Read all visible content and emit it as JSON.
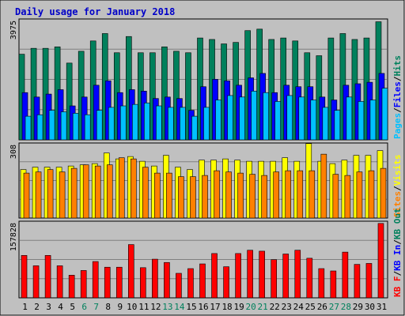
{
  "title": "Daily usage for January 2018",
  "colors": {
    "background": "#C0C0C0",
    "frame": "#000000",
    "title": "#0000C8",
    "hits": "#00805C",
    "files": "#0000FF",
    "pages": "#00C0FF",
    "visits": "#FFFF00",
    "sites": "#FF8000",
    "kbytes": "#FF0000",
    "weekend_label": "#00805C",
    "weekday_label": "#000000"
  },
  "chart_data": [
    {
      "type": "bar",
      "name": "top-panel",
      "ymax_label": "3975",
      "ylim": [
        0,
        3975
      ],
      "right_label": [
        "Pages",
        "Files",
        "Hits"
      ],
      "categories": [
        "1",
        "2",
        "3",
        "4",
        "5",
        "6",
        "7",
        "8",
        "9",
        "10",
        "11",
        "12",
        "13",
        "14",
        "15",
        "16",
        "17",
        "18",
        "19",
        "20",
        "21",
        "22",
        "23",
        "24",
        "25",
        "26",
        "27",
        "28",
        "29",
        "30",
        "31"
      ],
      "weekend": [
        "6",
        "7",
        "13",
        "14",
        "20",
        "21",
        "27",
        "28"
      ],
      "series": [
        {
          "name": "Hits",
          "values": [
            2900,
            3100,
            3100,
            3150,
            2600,
            3000,
            3350,
            3600,
            2950,
            3500,
            2950,
            2950,
            3150,
            3000,
            2950,
            3450,
            3400,
            3250,
            3300,
            3700,
            3750,
            3400,
            3450,
            3350,
            2950,
            2850,
            3450,
            3600,
            3400,
            3450,
            4000
          ]
        },
        {
          "name": "Files",
          "values": [
            1600,
            1450,
            1550,
            1700,
            1150,
            1450,
            1850,
            2000,
            1600,
            1700,
            1650,
            1400,
            1450,
            1400,
            1000,
            1800,
            2050,
            2000,
            1850,
            2100,
            2250,
            1600,
            1850,
            1800,
            1800,
            1450,
            1350,
            1850,
            1900,
            1950,
            2250
          ]
        },
        {
          "name": "Pages",
          "values": [
            800,
            850,
            1000,
            950,
            900,
            850,
            1000,
            1100,
            1150,
            1200,
            1250,
            1150,
            1100,
            1100,
            800,
            1100,
            1350,
            1500,
            1450,
            1650,
            1600,
            1300,
            1500,
            1450,
            1350,
            1100,
            1000,
            1450,
            1300,
            1350,
            1750
          ]
        }
      ]
    },
    {
      "type": "bar",
      "name": "middle-panel",
      "ymax_label": "308",
      "ylim": [
        0,
        308
      ],
      "right_label": [
        "Sites",
        "Visits"
      ],
      "categories": [
        "1",
        "2",
        "3",
        "4",
        "5",
        "6",
        "7",
        "8",
        "9",
        "10",
        "11",
        "12",
        "13",
        "14",
        "15",
        "16",
        "17",
        "18",
        "19",
        "20",
        "21",
        "22",
        "23",
        "24",
        "25",
        "26",
        "27",
        "28",
        "29",
        "30",
        "31"
      ],
      "series": [
        {
          "name": "Visits",
          "values": [
            205,
            215,
            215,
            215,
            220,
            225,
            230,
            275,
            250,
            260,
            240,
            220,
            265,
            215,
            205,
            245,
            245,
            250,
            245,
            240,
            240,
            240,
            255,
            240,
            315,
            240,
            230,
            245,
            265,
            265,
            285
          ]
        },
        {
          "name": "Sites",
          "values": [
            190,
            195,
            205,
            195,
            210,
            225,
            220,
            225,
            255,
            250,
            215,
            190,
            190,
            175,
            175,
            180,
            200,
            195,
            190,
            185,
            180,
            195,
            200,
            200,
            200,
            270,
            185,
            180,
            195,
            200,
            210
          ]
        }
      ]
    },
    {
      "type": "bar",
      "name": "bottom-panel",
      "ymax_label": "157828",
      "ylim": [
        0,
        157828
      ],
      "right_label": [
        "KB F",
        "KB In",
        "KB Out"
      ],
      "categories": [
        "1",
        "2",
        "3",
        "4",
        "5",
        "6",
        "7",
        "8",
        "9",
        "10",
        "11",
        "12",
        "13",
        "14",
        "15",
        "16",
        "17",
        "18",
        "19",
        "20",
        "21",
        "22",
        "23",
        "24",
        "25",
        "26",
        "27",
        "28",
        "29",
        "30",
        "31"
      ],
      "series": [
        {
          "name": "KB F",
          "values": [
            90000,
            68000,
            90000,
            68000,
            48000,
            58000,
            77000,
            65000,
            65000,
            113000,
            64000,
            82000,
            75000,
            52000,
            62000,
            72000,
            94000,
            66000,
            94000,
            101000,
            99000,
            81000,
            93000,
            101000,
            84000,
            62000,
            57000,
            97000,
            71000,
            73000,
            157828
          ]
        }
      ]
    }
  ],
  "right_labels": {
    "top": [
      {
        "text": "Pages",
        "color": "#00C0FF"
      },
      {
        "text": "/",
        "color": "#000000"
      },
      {
        "text": "Files",
        "color": "#0000FF"
      },
      {
        "text": "/",
        "color": "#000000"
      },
      {
        "text": "Hits",
        "color": "#00805C"
      }
    ],
    "middle": [
      {
        "text": "Sites",
        "color": "#FF8000"
      },
      {
        "text": "/",
        "color": "#000000"
      },
      {
        "text": "Visits",
        "color": "#FFFF00"
      }
    ],
    "bottom": [
      {
        "text": "KB F",
        "color": "#FF0000"
      },
      {
        "text": "/",
        "color": "#000000"
      },
      {
        "text": "KB In",
        "color": "#0000FF"
      },
      {
        "text": "/",
        "color": "#000000"
      },
      {
        "text": "KB Out",
        "color": "#00805C"
      }
    ]
  }
}
